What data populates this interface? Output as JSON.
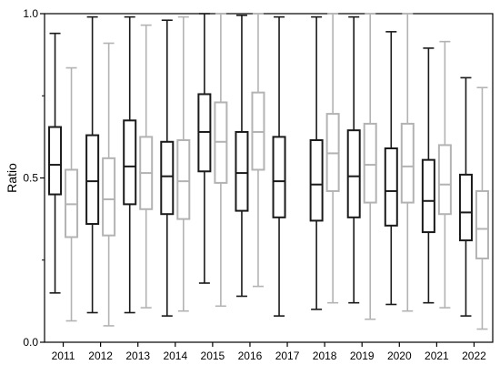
{
  "chart_data": {
    "type": "boxplot",
    "title": "",
    "xlabel": "",
    "ylabel": "Ratio",
    "ylim": [
      0.0,
      1.0
    ],
    "yticks": [
      "0.0",
      "0.5",
      "1.0"
    ],
    "categories": [
      "2011",
      "2012",
      "2013",
      "2014",
      "2015",
      "2016",
      "2017",
      "2018",
      "2019",
      "2020",
      "2021",
      "2022"
    ],
    "grid": false,
    "legend": "none",
    "series": [
      {
        "color": "#1a1a1a",
        "boxes": [
          {
            "min": 0.15,
            "q1": 0.45,
            "median": 0.54,
            "q3": 0.655,
            "max": 0.94
          },
          {
            "min": 0.09,
            "q1": 0.36,
            "median": 0.49,
            "q3": 0.63,
            "max": 0.99
          },
          {
            "min": 0.09,
            "q1": 0.42,
            "median": 0.535,
            "q3": 0.675,
            "max": 0.99
          },
          {
            "min": 0.08,
            "q1": 0.39,
            "median": 0.505,
            "q3": 0.61,
            "max": 0.98
          },
          {
            "min": 0.18,
            "q1": 0.52,
            "median": 0.64,
            "q3": 0.755,
            "max": 1.0
          },
          {
            "min": 0.14,
            "q1": 0.4,
            "median": 0.515,
            "q3": 0.64,
            "max": 0.995
          },
          {
            "min": 0.08,
            "q1": 0.38,
            "median": 0.49,
            "q3": 0.625,
            "max": 0.99
          },
          {
            "min": 0.1,
            "q1": 0.37,
            "median": 0.48,
            "q3": 0.615,
            "max": 0.99
          },
          {
            "min": 0.12,
            "q1": 0.38,
            "median": 0.505,
            "q3": 0.645,
            "max": 0.99
          },
          {
            "min": 0.115,
            "q1": 0.355,
            "median": 0.46,
            "q3": 0.59,
            "max": 0.945
          },
          {
            "min": 0.12,
            "q1": 0.335,
            "median": 0.43,
            "q3": 0.555,
            "max": 0.895
          },
          {
            "min": 0.08,
            "q1": 0.31,
            "median": 0.395,
            "q3": 0.51,
            "max": 0.805
          }
        ]
      },
      {
        "color": "#b3b3b3",
        "boxes": [
          {
            "min": 0.065,
            "q1": 0.32,
            "median": 0.42,
            "q3": 0.525,
            "max": 0.835
          },
          {
            "min": 0.05,
            "q1": 0.325,
            "median": 0.435,
            "q3": 0.56,
            "max": 0.91
          },
          {
            "min": 0.105,
            "q1": 0.405,
            "median": 0.515,
            "q3": 0.625,
            "max": 0.965
          },
          {
            "min": 0.095,
            "q1": 0.375,
            "median": 0.49,
            "q3": 0.615,
            "max": 0.99
          },
          {
            "min": 0.11,
            "q1": 0.485,
            "median": 0.61,
            "q3": 0.73,
            "max": 1.0
          },
          {
            "min": 0.17,
            "q1": 0.525,
            "median": 0.64,
            "q3": 0.76,
            "max": 1.0
          },
          {
            "min": null,
            "q1": null,
            "median": null,
            "q3": null,
            "max": null
          },
          {
            "min": 0.12,
            "q1": 0.46,
            "median": 0.575,
            "q3": 0.695,
            "max": 1.0
          },
          {
            "min": 0.07,
            "q1": 0.425,
            "median": 0.54,
            "q3": 0.665,
            "max": 1.0
          },
          {
            "min": 0.095,
            "q1": 0.425,
            "median": 0.535,
            "q3": 0.665,
            "max": 1.0
          },
          {
            "min": 0.105,
            "q1": 0.39,
            "median": 0.48,
            "q3": 0.6,
            "max": 0.915
          },
          {
            "min": 0.04,
            "q1": 0.255,
            "median": 0.345,
            "q3": 0.46,
            "max": 0.775
          }
        ]
      }
    ]
  }
}
